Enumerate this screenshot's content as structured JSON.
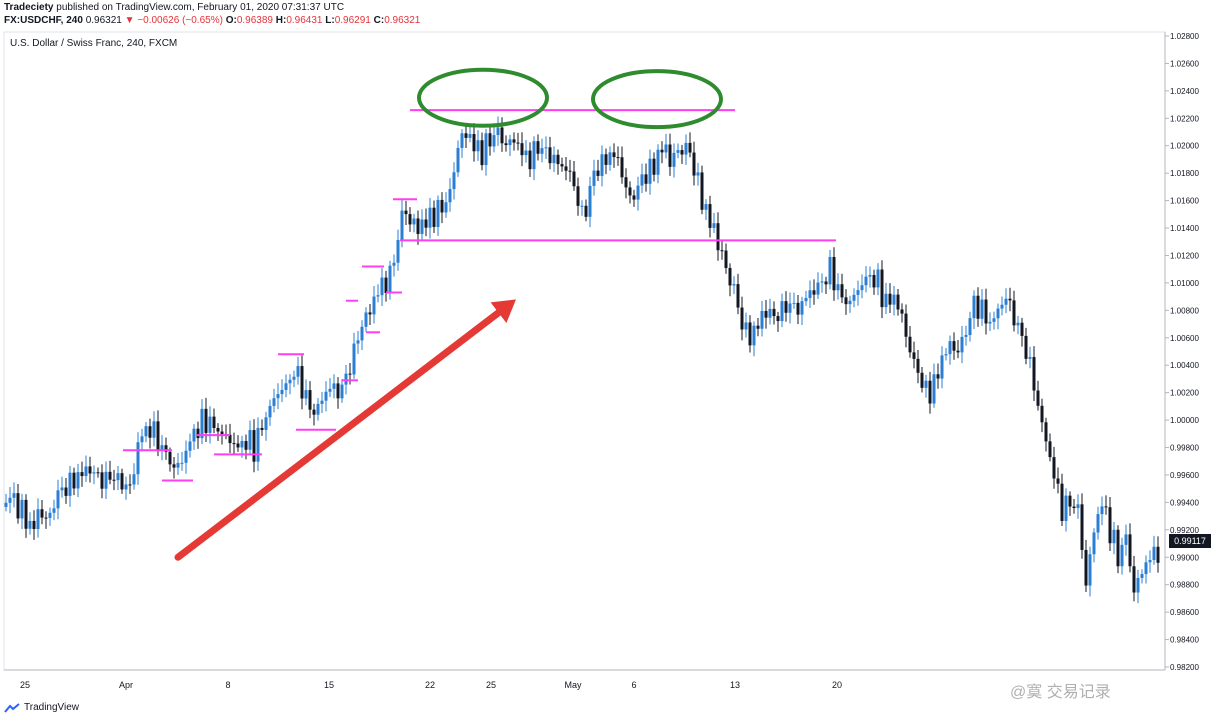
{
  "header": {
    "author": "Tradeciety",
    "published": "published on TradingView.com, February 01, 2020 07:31:37 UTC",
    "symbol": "FX:USDCHF, 240",
    "last": "0.96321",
    "change_arrow": "▼",
    "change": "−0.00626 (−0.65%)",
    "o_label": "O:",
    "o_value": "0.96389",
    "h_label": "H:",
    "h_value": "0.96431",
    "l_label": "L:",
    "l_value": "0.96291",
    "c_label": "C:",
    "c_value": "0.96321"
  },
  "symbol_description": "U.S. Dollar / Swiss Franc, 240, FXCM",
  "footer": {
    "brand": "TradingView",
    "watermark": "@寞 交易记录"
  },
  "price_badge": "0.99117",
  "colors": {
    "up": "#2a7fd4",
    "down": "#131722",
    "support": "#ff3df2",
    "ellipse": "#2e8b2e",
    "arrow": "#e53935",
    "badge": "#131722"
  },
  "chart_data": {
    "type": "candlestick",
    "y_axis": {
      "min": 0.982,
      "max": 1.028,
      "ticks": [
        "1.02800",
        "1.02600",
        "1.02400",
        "1.02200",
        "1.02000",
        "1.01800",
        "1.01600",
        "1.01400",
        "1.01200",
        "1.01000",
        "1.00800",
        "1.00600",
        "1.00400",
        "1.00200",
        "1.00000",
        "0.99800",
        "0.99600",
        "0.99400",
        "0.99200",
        "0.99000",
        "0.98800",
        "0.98600",
        "0.98400",
        "0.98200"
      ]
    },
    "x_axis": {
      "labels": [
        "25",
        "Apr",
        "8",
        "15",
        "22",
        "25",
        "May",
        "6",
        "13",
        "20"
      ]
    },
    "close_path": [
      [
        0,
        0.9935
      ],
      [
        8,
        0.9945
      ],
      [
        16,
        0.994
      ],
      [
        24,
        0.993
      ],
      [
        32,
        0.992
      ],
      [
        40,
        0.9935
      ],
      [
        48,
        0.9925
      ],
      [
        56,
        0.9945
      ],
      [
        64,
        0.995
      ],
      [
        72,
        0.9955
      ],
      [
        80,
        0.996
      ],
      [
        88,
        0.9965
      ],
      [
        96,
        0.996
      ],
      [
        104,
        0.9955
      ],
      [
        112,
        0.996
      ],
      [
        120,
        0.9955
      ],
      [
        128,
        0.995
      ],
      [
        134,
        0.996
      ],
      [
        138,
        0.9985
      ],
      [
        144,
        0.999
      ],
      [
        150,
        0.9995
      ],
      [
        158,
        0.9985
      ],
      [
        166,
        0.9975
      ],
      [
        174,
        0.9965
      ],
      [
        182,
        0.997
      ],
      [
        190,
        0.9985
      ],
      [
        198,
        0.9995
      ],
      [
        206,
        1.0
      ],
      [
        214,
        0.9995
      ],
      [
        222,
        0.999
      ],
      [
        230,
        0.9985
      ],
      [
        238,
        0.998
      ],
      [
        246,
        0.9985
      ],
      [
        254,
        0.998
      ],
      [
        262,
        0.9995
      ],
      [
        270,
        1.001
      ],
      [
        278,
        1.002
      ],
      [
        286,
        1.0025
      ],
      [
        294,
        1.0035
      ],
      [
        300,
        1.003
      ],
      [
        306,
        1.0015
      ],
      [
        314,
        1.0005
      ],
      [
        322,
        1.0015
      ],
      [
        330,
        1.0025
      ],
      [
        338,
        1.002
      ],
      [
        346,
        1.003
      ],
      [
        354,
        1.005
      ],
      [
        362,
        1.007
      ],
      [
        370,
        1.008
      ],
      [
        378,
        1.0095
      ],
      [
        386,
        1.01
      ],
      [
        394,
        1.0115
      ],
      [
        398,
        1.0135
      ],
      [
        404,
        1.0155
      ],
      [
        410,
        1.0145
      ],
      [
        418,
        1.014
      ],
      [
        426,
        1.0145
      ],
      [
        434,
        1.015
      ],
      [
        442,
        1.0155
      ],
      [
        450,
        1.0165
      ],
      [
        458,
        1.02
      ],
      [
        466,
        1.021
      ],
      [
        474,
        1.02
      ],
      [
        482,
        1.0195
      ],
      [
        490,
        1.0205
      ],
      [
        498,
        1.021
      ],
      [
        506,
        1.02
      ],
      [
        514,
        1.0205
      ],
      [
        522,
        1.0195
      ],
      [
        530,
        1.019
      ],
      [
        538,
        1.02
      ],
      [
        546,
        1.0195
      ],
      [
        554,
        1.019
      ],
      [
        562,
        1.0185
      ],
      [
        570,
        1.018
      ],
      [
        578,
        1.016
      ],
      [
        584,
        1.0145
      ],
      [
        590,
        1.017
      ],
      [
        598,
        1.0185
      ],
      [
        606,
        1.019
      ],
      [
        614,
        1.0195
      ],
      [
        622,
        1.018
      ],
      [
        630,
        1.016
      ],
      [
        638,
        1.017
      ],
      [
        646,
        1.018
      ],
      [
        654,
        1.0185
      ],
      [
        662,
        1.02
      ],
      [
        670,
        1.019
      ],
      [
        678,
        1.0195
      ],
      [
        686,
        1.02
      ],
      [
        694,
        1.0185
      ],
      [
        702,
        1.016
      ],
      [
        710,
        1.0145
      ],
      [
        718,
        1.013
      ],
      [
        726,
        1.011
      ],
      [
        734,
        1.0095
      ],
      [
        742,
        1.007
      ],
      [
        750,
        1.006
      ],
      [
        758,
        1.007
      ],
      [
        766,
        1.008
      ],
      [
        774,
        1.0075
      ],
      [
        782,
        1.008
      ],
      [
        790,
        1.0085
      ],
      [
        798,
        1.008
      ],
      [
        806,
        1.009
      ],
      [
        814,
        1.0095
      ],
      [
        822,
        1.01
      ],
      [
        830,
        1.011
      ],
      [
        838,
        1.0095
      ],
      [
        846,
        1.0085
      ],
      [
        854,
        1.009
      ],
      [
        862,
        1.01
      ],
      [
        870,
        1.0105
      ],
      [
        878,
        1.01
      ],
      [
        886,
        1.0085
      ],
      [
        894,
        1.009
      ],
      [
        902,
        1.0075
      ],
      [
        910,
        1.005
      ],
      [
        918,
        1.0035
      ],
      [
        926,
        1.002
      ],
      [
        934,
        1.0025
      ],
      [
        942,
        1.0045
      ],
      [
        950,
        1.0055
      ],
      [
        958,
        1.005
      ],
      [
        966,
        1.0065
      ],
      [
        974,
        1.0085
      ],
      [
        982,
        1.008
      ],
      [
        990,
        1.007
      ],
      [
        998,
        1.008
      ],
      [
        1006,
        1.009
      ],
      [
        1014,
        1.0075
      ],
      [
        1022,
        1.006
      ],
      [
        1030,
        1.004
      ],
      [
        1038,
        1.001
      ],
      [
        1046,
        0.9985
      ],
      [
        1054,
        0.996
      ],
      [
        1062,
        0.9935
      ],
      [
        1070,
        0.994
      ],
      [
        1078,
        0.9935
      ],
      [
        1086,
        0.988
      ],
      [
        1094,
        0.992
      ],
      [
        1102,
        0.994
      ],
      [
        1110,
        0.992
      ],
      [
        1118,
        0.99
      ],
      [
        1126,
        0.9915
      ],
      [
        1134,
        0.9875
      ],
      [
        1142,
        0.989
      ],
      [
        1150,
        0.99
      ],
      [
        1158,
        0.9905
      ]
    ],
    "support_lines": [
      {
        "price": 1.0226,
        "x_from": 410,
        "x_to": 735
      },
      {
        "price": 1.0131,
        "x_from": 400,
        "x_to": 836
      }
    ],
    "pullback_lows": [
      {
        "price": 0.9978,
        "x_from": 123,
        "x_to": 172
      },
      {
        "price": 0.9956,
        "x_from": 162,
        "x_to": 193
      },
      {
        "price": 0.9989,
        "x_from": 197,
        "x_to": 230
      },
      {
        "price": 0.9975,
        "x_from": 214,
        "x_to": 262
      },
      {
        "price": 1.0048,
        "x_from": 278,
        "x_to": 304
      },
      {
        "price": 0.9993,
        "x_from": 296,
        "x_to": 336
      },
      {
        "price": 1.0029,
        "x_from": 342,
        "x_to": 358
      },
      {
        "price": 1.0087,
        "x_from": 346,
        "x_to": 358
      },
      {
        "price": 1.0064,
        "x_from": 366,
        "x_to": 380
      },
      {
        "price": 1.0112,
        "x_from": 362,
        "x_to": 384
      },
      {
        "price": 1.0093,
        "x_from": 386,
        "x_to": 402
      },
      {
        "price": 1.0161,
        "x_from": 393,
        "x_to": 417
      }
    ],
    "tops": [
      {
        "center_x": 483,
        "price": 1.0235
      },
      {
        "center_x": 657,
        "price": 1.0234
      }
    ],
    "trend_arrow": {
      "from": [
        178,
        0.99
      ],
      "to": [
        516,
        1.0088
      ]
    },
    "last_price": 0.99117
  }
}
